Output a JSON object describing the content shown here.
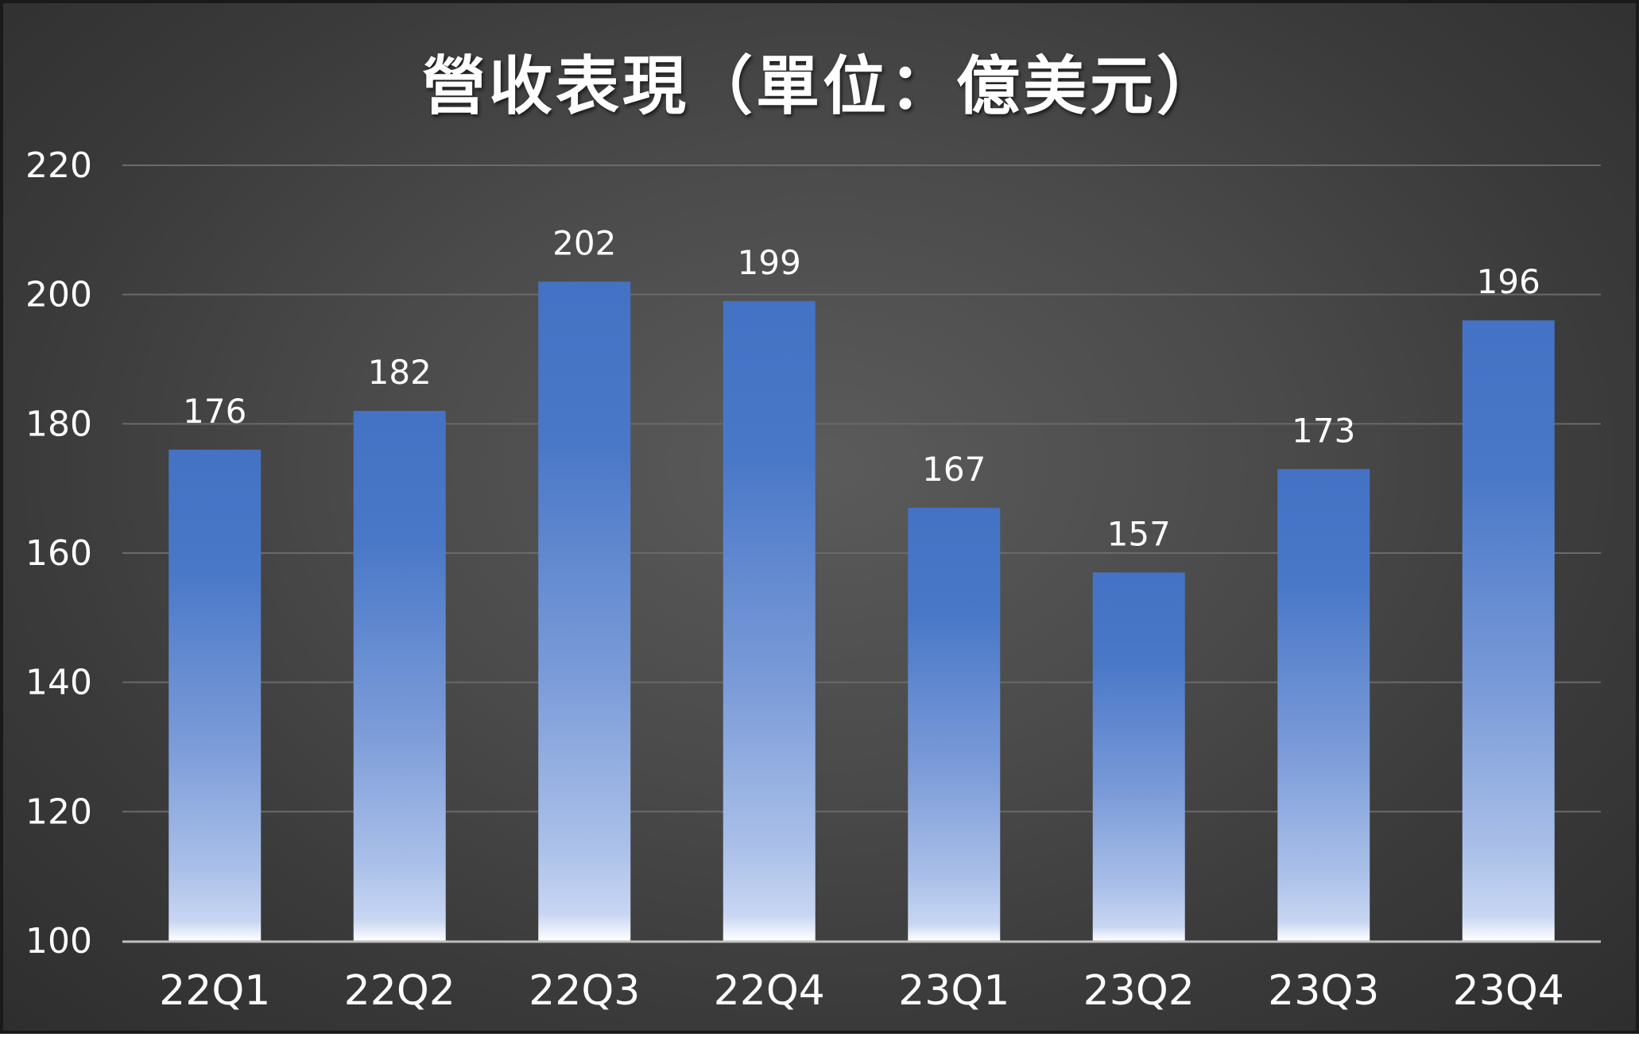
{
  "chart_data": {
    "type": "bar",
    "title": "營收表現（單位：億美元）",
    "categories": [
      "22Q1",
      "22Q2",
      "22Q3",
      "22Q4",
      "23Q1",
      "23Q2",
      "23Q3",
      "23Q4"
    ],
    "values": [
      176,
      182,
      202,
      199,
      167,
      157,
      173,
      196
    ],
    "ylim": [
      100,
      220
    ],
    "yticks": [
      100,
      120,
      140,
      160,
      180,
      200,
      220
    ],
    "xlabel": "",
    "ylabel": "",
    "grid": true,
    "data_labels": true,
    "colors": {
      "bar_top": "#4472c4",
      "bar_bottom": "#ffffff",
      "background": "#4a4a4a",
      "gridline": "#6a6a6a",
      "axis": "#bfbfbf",
      "text": "#ffffff"
    }
  }
}
